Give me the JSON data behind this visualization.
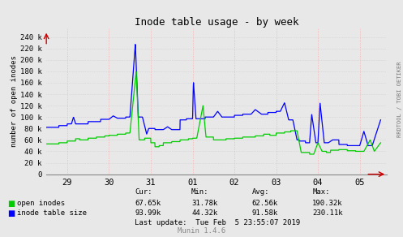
{
  "title": "Inode table usage - by week",
  "ylabel": "number of open inodes",
  "background_color": "#e8e8e8",
  "plot_bg_color": "#e8e8e8",
  "grid_color": "#ffffff",
  "x_tick_labels": [
    "29",
    "30",
    "31",
    "01",
    "02",
    "03",
    "04",
    "05"
  ],
  "x_tick_positions": [
    0.5,
    1.5,
    2.5,
    3.5,
    4.5,
    5.5,
    6.5,
    7.5
  ],
  "y_ticks": [
    0,
    20000,
    40000,
    60000,
    80000,
    100000,
    120000,
    140000,
    160000,
    180000,
    200000,
    220000,
    240000
  ],
  "y_tick_labels": [
    "0",
    "20 k",
    "40 k",
    "60 k",
    "80 k",
    "100 k",
    "120 k",
    "140 k",
    "160 k",
    "180 k",
    "200 k",
    "220 k",
    "240 k"
  ],
  "ylim": [
    0,
    255000
  ],
  "xlim": [
    0,
    8.15
  ],
  "vline_positions": [
    0.5,
    1.5,
    2.5,
    3.5,
    4.5,
    5.5,
    6.5,
    7.5
  ],
  "stats_header": [
    "Cur:",
    "Min:",
    "Avg:",
    "Max:"
  ],
  "stats_open": [
    "67.65k",
    "31.78k",
    "62.56k",
    "190.32k"
  ],
  "stats_table": [
    "93.99k",
    "44.32k",
    "91.58k",
    "230.11k"
  ],
  "last_update": "Last update:  Tue Feb  5 23:55:07 2019",
  "munin_label": "Munin 1.4.6",
  "right_label": "RRDTOOL / TOBI OETIKER",
  "arrow_color": "#cc0000",
  "green_color": "#00cc00",
  "blue_color": "#0000ff",
  "red_vline_color": "#ffaaaa",
  "font_color": "#000000",
  "grid_line_color": "#dddddd"
}
